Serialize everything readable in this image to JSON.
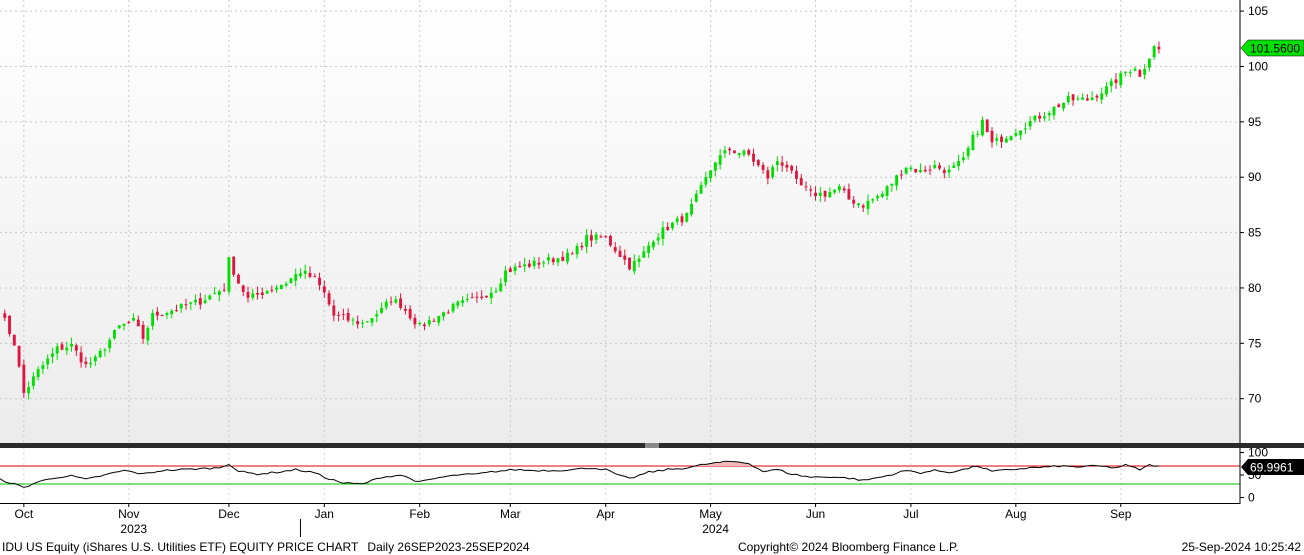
{
  "chart_data": {
    "type": "candlestick",
    "ticker_label": "IDU US Equity (iShares U.S. Utilities ETF) EQUITY PRICE CHART",
    "period_label": "Daily 26SEP2023-25SEP2024",
    "copyright": "Copyright© 2024 Bloomberg Finance L.P.",
    "timestamp": "25-Sep-2024 10:25:42",
    "price_axis": {
      "ylim": [
        66,
        106
      ],
      "ticks": [
        70,
        75,
        80,
        85,
        90,
        95,
        100,
        105
      ]
    },
    "rsi_axis": {
      "ylim": [
        -10,
        110
      ],
      "ticks": [
        0,
        50,
        100
      ],
      "overbought": 70,
      "oversold": 30
    },
    "x_range": [
      0,
      260
    ],
    "month_ticks": [
      {
        "label": "Oct",
        "index": 5
      },
      {
        "label": "Nov",
        "index": 27
      },
      {
        "label": "Dec",
        "index": 48
      },
      {
        "label": "Jan",
        "index": 68
      },
      {
        "label": "Feb",
        "index": 88
      },
      {
        "label": "Mar",
        "index": 107
      },
      {
        "label": "Apr",
        "index": 127
      },
      {
        "label": "May",
        "index": 149
      },
      {
        "label": "Jun",
        "index": 171
      },
      {
        "label": "Jul",
        "index": 191
      },
      {
        "label": "Aug",
        "index": 213
      },
      {
        "label": "Sep",
        "index": 235
      }
    ],
    "year_labels": [
      {
        "label": "2023",
        "index": 27
      },
      {
        "label": "2024",
        "index": 149
      }
    ],
    "year_separator_index": 63,
    "last_price": 101.56,
    "last_price_label": "101.5600",
    "last_rsi": 69.9961,
    "last_rsi_label": "69.9961",
    "close_anchors": [
      [
        0,
        78.0
      ],
      [
        3,
        75.0
      ],
      [
        5,
        70.5
      ],
      [
        8,
        72.5
      ],
      [
        12,
        74.5
      ],
      [
        15,
        74.8
      ],
      [
        18,
        73.0
      ],
      [
        20,
        73.5
      ],
      [
        25,
        76.5
      ],
      [
        28,
        77.0
      ],
      [
        30,
        75.5
      ],
      [
        32,
        77.5
      ],
      [
        36,
        78.0
      ],
      [
        42,
        78.8
      ],
      [
        47,
        80.0
      ],
      [
        48,
        82.5
      ],
      [
        50,
        80.5
      ],
      [
        52,
        79.0
      ],
      [
        56,
        79.8
      ],
      [
        60,
        80.5
      ],
      [
        63,
        81.5
      ],
      [
        66,
        80.8
      ],
      [
        68,
        79.5
      ],
      [
        70,
        77.5
      ],
      [
        74,
        77.0
      ],
      [
        76,
        76.8
      ],
      [
        80,
        78.0
      ],
      [
        82,
        79.0
      ],
      [
        84,
        78.5
      ],
      [
        88,
        76.5
      ],
      [
        92,
        77.5
      ],
      [
        96,
        78.5
      ],
      [
        100,
        79.0
      ],
      [
        104,
        80.0
      ],
      [
        106,
        81.5
      ],
      [
        110,
        82.0
      ],
      [
        115,
        82.5
      ],
      [
        120,
        83.0
      ],
      [
        123,
        84.5
      ],
      [
        127,
        84.5
      ],
      [
        129,
        83.5
      ],
      [
        132,
        82.0
      ],
      [
        134,
        82.5
      ],
      [
        137,
        84.5
      ],
      [
        140,
        85.5
      ],
      [
        144,
        86.5
      ],
      [
        147,
        89.0
      ],
      [
        150,
        91.5
      ],
      [
        153,
        92.5
      ],
      [
        157,
        92.0
      ],
      [
        159,
        91.0
      ],
      [
        161,
        90.0
      ],
      [
        163,
        91.5
      ],
      [
        165,
        91.0
      ],
      [
        167,
        89.5
      ],
      [
        170,
        88.5
      ],
      [
        173,
        88.5
      ],
      [
        176,
        89.0
      ],
      [
        178,
        88.0
      ],
      [
        181,
        87.5
      ],
      [
        185,
        88.5
      ],
      [
        188,
        90.0
      ],
      [
        190,
        91.0
      ],
      [
        193,
        90.5
      ],
      [
        196,
        91.0
      ],
      [
        199,
        90.5
      ],
      [
        202,
        91.5
      ],
      [
        204,
        93.5
      ],
      [
        206,
        95.0
      ],
      [
        208,
        93.0
      ],
      [
        212,
        94.0
      ],
      [
        216,
        95.0
      ],
      [
        220,
        96.0
      ],
      [
        224,
        97.0
      ],
      [
        228,
        97.0
      ],
      [
        232,
        98.0
      ],
      [
        236,
        99.5
      ],
      [
        238,
        100.0
      ],
      [
        239,
        99.0
      ],
      [
        241,
        101.0
      ],
      [
        242,
        102.0
      ],
      [
        243,
        101.56
      ]
    ],
    "rsi_anchors": [
      [
        0,
        40
      ],
      [
        3,
        30
      ],
      [
        5,
        22
      ],
      [
        8,
        35
      ],
      [
        12,
        45
      ],
      [
        15,
        48
      ],
      [
        18,
        40
      ],
      [
        22,
        50
      ],
      [
        26,
        60
      ],
      [
        30,
        52
      ],
      [
        34,
        60
      ],
      [
        38,
        62
      ],
      [
        42,
        64
      ],
      [
        46,
        66
      ],
      [
        48,
        75
      ],
      [
        50,
        58
      ],
      [
        54,
        52
      ],
      [
        58,
        56
      ],
      [
        62,
        62
      ],
      [
        66,
        55
      ],
      [
        68,
        45
      ],
      [
        72,
        32
      ],
      [
        76,
        30
      ],
      [
        80,
        45
      ],
      [
        84,
        50
      ],
      [
        88,
        34
      ],
      [
        92,
        44
      ],
      [
        96,
        50
      ],
      [
        100,
        52
      ],
      [
        104,
        58
      ],
      [
        108,
        62
      ],
      [
        112,
        60
      ],
      [
        116,
        60
      ],
      [
        120,
        62
      ],
      [
        124,
        66
      ],
      [
        127,
        62
      ],
      [
        130,
        48
      ],
      [
        132,
        42
      ],
      [
        136,
        56
      ],
      [
        140,
        62
      ],
      [
        144,
        66
      ],
      [
        148,
        74
      ],
      [
        151,
        78
      ],
      [
        154,
        80
      ],
      [
        157,
        76
      ],
      [
        160,
        58
      ],
      [
        163,
        62
      ],
      [
        166,
        52
      ],
      [
        170,
        45
      ],
      [
        174,
        46
      ],
      [
        178,
        43
      ],
      [
        181,
        38
      ],
      [
        185,
        46
      ],
      [
        188,
        54
      ],
      [
        190,
        60
      ],
      [
        193,
        55
      ],
      [
        196,
        60
      ],
      [
        199,
        56
      ],
      [
        202,
        62
      ],
      [
        205,
        70
      ],
      [
        208,
        58
      ],
      [
        212,
        62
      ],
      [
        216,
        66
      ],
      [
        220,
        68
      ],
      [
        222,
        70
      ],
      [
        226,
        68
      ],
      [
        230,
        70
      ],
      [
        234,
        66
      ],
      [
        236,
        72
      ],
      [
        239,
        62
      ],
      [
        241,
        72
      ],
      [
        243,
        70
      ]
    ]
  }
}
